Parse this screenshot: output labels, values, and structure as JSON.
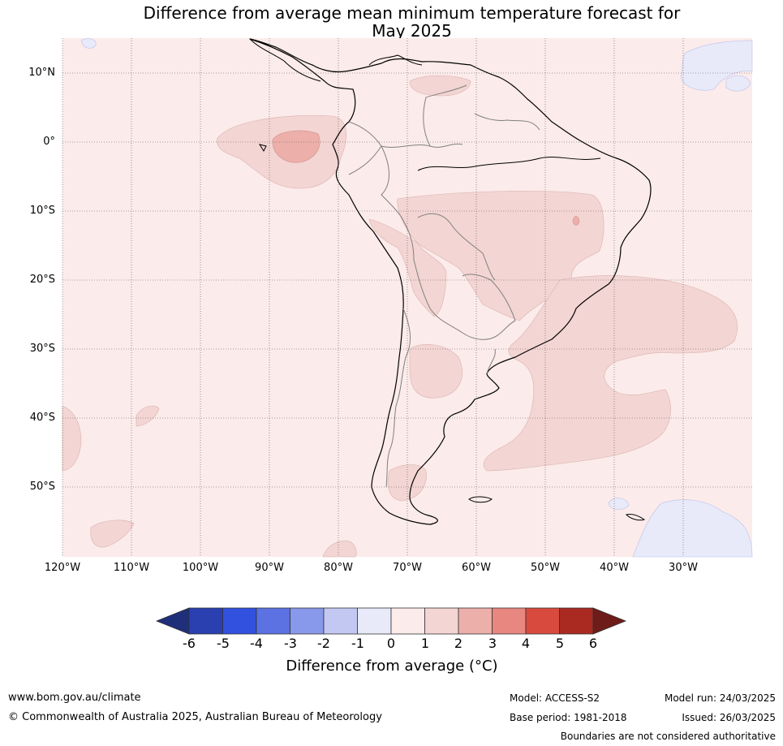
{
  "title": {
    "line1": "Difference from average mean minimum temperature forecast for",
    "line2": "May 2025"
  },
  "map": {
    "lat_labels": [
      "10°N",
      "0°",
      "10°S",
      "20°S",
      "30°S",
      "40°S",
      "50°S"
    ],
    "lon_labels": [
      "120°W",
      "110°W",
      "100°W",
      "90°W",
      "80°W",
      "70°W",
      "60°W",
      "50°W",
      "40°W",
      "30°W"
    ],
    "background_color": "#fbebea"
  },
  "colorbar": {
    "ticks": [
      "-6",
      "-5",
      "-4",
      "-3",
      "-2",
      "-1",
      "0",
      "1",
      "2",
      "3",
      "4",
      "5",
      "6"
    ],
    "colors": [
      "#1f2f7a",
      "#2a3fb0",
      "#3151de",
      "#5c72e2",
      "#8898ea",
      "#c2c8f2",
      "#e8eafa",
      "#fbebea",
      "#f3d5d3",
      "#ecafa9",
      "#e8877f",
      "#d94a3e",
      "#aa2a22",
      "#6e1c1a"
    ],
    "label": "Difference from average (°C)"
  },
  "footer": {
    "website": "www.bom.gov.au/climate",
    "copyright": "© Commonwealth of Australia 2025, Australian Bureau of Meteorology",
    "model": "Model: ACCESS-S2",
    "base_period": "Base period: 1981-2018",
    "model_run": "Model run: 24/03/2025",
    "issued": "Issued: 26/03/2025",
    "disclaimer": "Boundaries are not considered authoritative"
  }
}
